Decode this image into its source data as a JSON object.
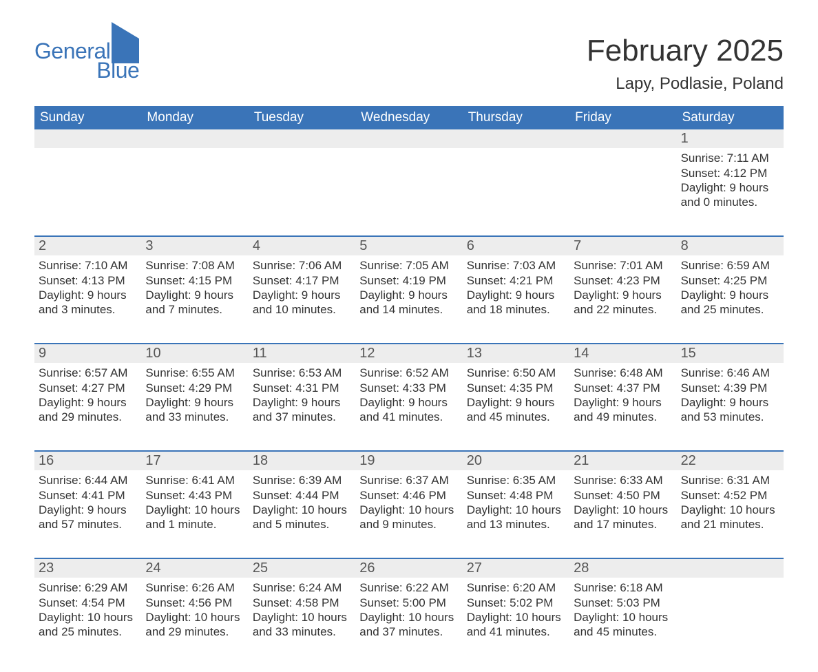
{
  "brand": {
    "word1": "General",
    "word2": "Blue",
    "accent_color": "#3a74b8"
  },
  "title": "February 2025",
  "location": "Lapy, Podlasie, Poland",
  "header_bg": "#3a74b8",
  "header_fg": "#ffffff",
  "row_separator_color": "#3a74b8",
  "daynum_bg": "#ededed",
  "body_bg": "#ffffff",
  "text_color": "#333333",
  "days_of_week": [
    "Sunday",
    "Monday",
    "Tuesday",
    "Wednesday",
    "Thursday",
    "Friday",
    "Saturday"
  ],
  "weeks": [
    [
      null,
      null,
      null,
      null,
      null,
      null,
      {
        "n": "1",
        "sunrise": "Sunrise: 7:11 AM",
        "sunset": "Sunset: 4:12 PM",
        "day1": "Daylight: 9 hours",
        "day2": "and 0 minutes."
      }
    ],
    [
      {
        "n": "2",
        "sunrise": "Sunrise: 7:10 AM",
        "sunset": "Sunset: 4:13 PM",
        "day1": "Daylight: 9 hours",
        "day2": "and 3 minutes."
      },
      {
        "n": "3",
        "sunrise": "Sunrise: 7:08 AM",
        "sunset": "Sunset: 4:15 PM",
        "day1": "Daylight: 9 hours",
        "day2": "and 7 minutes."
      },
      {
        "n": "4",
        "sunrise": "Sunrise: 7:06 AM",
        "sunset": "Sunset: 4:17 PM",
        "day1": "Daylight: 9 hours",
        "day2": "and 10 minutes."
      },
      {
        "n": "5",
        "sunrise": "Sunrise: 7:05 AM",
        "sunset": "Sunset: 4:19 PM",
        "day1": "Daylight: 9 hours",
        "day2": "and 14 minutes."
      },
      {
        "n": "6",
        "sunrise": "Sunrise: 7:03 AM",
        "sunset": "Sunset: 4:21 PM",
        "day1": "Daylight: 9 hours",
        "day2": "and 18 minutes."
      },
      {
        "n": "7",
        "sunrise": "Sunrise: 7:01 AM",
        "sunset": "Sunset: 4:23 PM",
        "day1": "Daylight: 9 hours",
        "day2": "and 22 minutes."
      },
      {
        "n": "8",
        "sunrise": "Sunrise: 6:59 AM",
        "sunset": "Sunset: 4:25 PM",
        "day1": "Daylight: 9 hours",
        "day2": "and 25 minutes."
      }
    ],
    [
      {
        "n": "9",
        "sunrise": "Sunrise: 6:57 AM",
        "sunset": "Sunset: 4:27 PM",
        "day1": "Daylight: 9 hours",
        "day2": "and 29 minutes."
      },
      {
        "n": "10",
        "sunrise": "Sunrise: 6:55 AM",
        "sunset": "Sunset: 4:29 PM",
        "day1": "Daylight: 9 hours",
        "day2": "and 33 minutes."
      },
      {
        "n": "11",
        "sunrise": "Sunrise: 6:53 AM",
        "sunset": "Sunset: 4:31 PM",
        "day1": "Daylight: 9 hours",
        "day2": "and 37 minutes."
      },
      {
        "n": "12",
        "sunrise": "Sunrise: 6:52 AM",
        "sunset": "Sunset: 4:33 PM",
        "day1": "Daylight: 9 hours",
        "day2": "and 41 minutes."
      },
      {
        "n": "13",
        "sunrise": "Sunrise: 6:50 AM",
        "sunset": "Sunset: 4:35 PM",
        "day1": "Daylight: 9 hours",
        "day2": "and 45 minutes."
      },
      {
        "n": "14",
        "sunrise": "Sunrise: 6:48 AM",
        "sunset": "Sunset: 4:37 PM",
        "day1": "Daylight: 9 hours",
        "day2": "and 49 minutes."
      },
      {
        "n": "15",
        "sunrise": "Sunrise: 6:46 AM",
        "sunset": "Sunset: 4:39 PM",
        "day1": "Daylight: 9 hours",
        "day2": "and 53 minutes."
      }
    ],
    [
      {
        "n": "16",
        "sunrise": "Sunrise: 6:44 AM",
        "sunset": "Sunset: 4:41 PM",
        "day1": "Daylight: 9 hours",
        "day2": "and 57 minutes."
      },
      {
        "n": "17",
        "sunrise": "Sunrise: 6:41 AM",
        "sunset": "Sunset: 4:43 PM",
        "day1": "Daylight: 10 hours",
        "day2": "and 1 minute."
      },
      {
        "n": "18",
        "sunrise": "Sunrise: 6:39 AM",
        "sunset": "Sunset: 4:44 PM",
        "day1": "Daylight: 10 hours",
        "day2": "and 5 minutes."
      },
      {
        "n": "19",
        "sunrise": "Sunrise: 6:37 AM",
        "sunset": "Sunset: 4:46 PM",
        "day1": "Daylight: 10 hours",
        "day2": "and 9 minutes."
      },
      {
        "n": "20",
        "sunrise": "Sunrise: 6:35 AM",
        "sunset": "Sunset: 4:48 PM",
        "day1": "Daylight: 10 hours",
        "day2": "and 13 minutes."
      },
      {
        "n": "21",
        "sunrise": "Sunrise: 6:33 AM",
        "sunset": "Sunset: 4:50 PM",
        "day1": "Daylight: 10 hours",
        "day2": "and 17 minutes."
      },
      {
        "n": "22",
        "sunrise": "Sunrise: 6:31 AM",
        "sunset": "Sunset: 4:52 PM",
        "day1": "Daylight: 10 hours",
        "day2": "and 21 minutes."
      }
    ],
    [
      {
        "n": "23",
        "sunrise": "Sunrise: 6:29 AM",
        "sunset": "Sunset: 4:54 PM",
        "day1": "Daylight: 10 hours",
        "day2": "and 25 minutes."
      },
      {
        "n": "24",
        "sunrise": "Sunrise: 6:26 AM",
        "sunset": "Sunset: 4:56 PM",
        "day1": "Daylight: 10 hours",
        "day2": "and 29 minutes."
      },
      {
        "n": "25",
        "sunrise": "Sunrise: 6:24 AM",
        "sunset": "Sunset: 4:58 PM",
        "day1": "Daylight: 10 hours",
        "day2": "and 33 minutes."
      },
      {
        "n": "26",
        "sunrise": "Sunrise: 6:22 AM",
        "sunset": "Sunset: 5:00 PM",
        "day1": "Daylight: 10 hours",
        "day2": "and 37 minutes."
      },
      {
        "n": "27",
        "sunrise": "Sunrise: 6:20 AM",
        "sunset": "Sunset: 5:02 PM",
        "day1": "Daylight: 10 hours",
        "day2": "and 41 minutes."
      },
      {
        "n": "28",
        "sunrise": "Sunrise: 6:18 AM",
        "sunset": "Sunset: 5:03 PM",
        "day1": "Daylight: 10 hours",
        "day2": "and 45 minutes."
      },
      null
    ]
  ]
}
